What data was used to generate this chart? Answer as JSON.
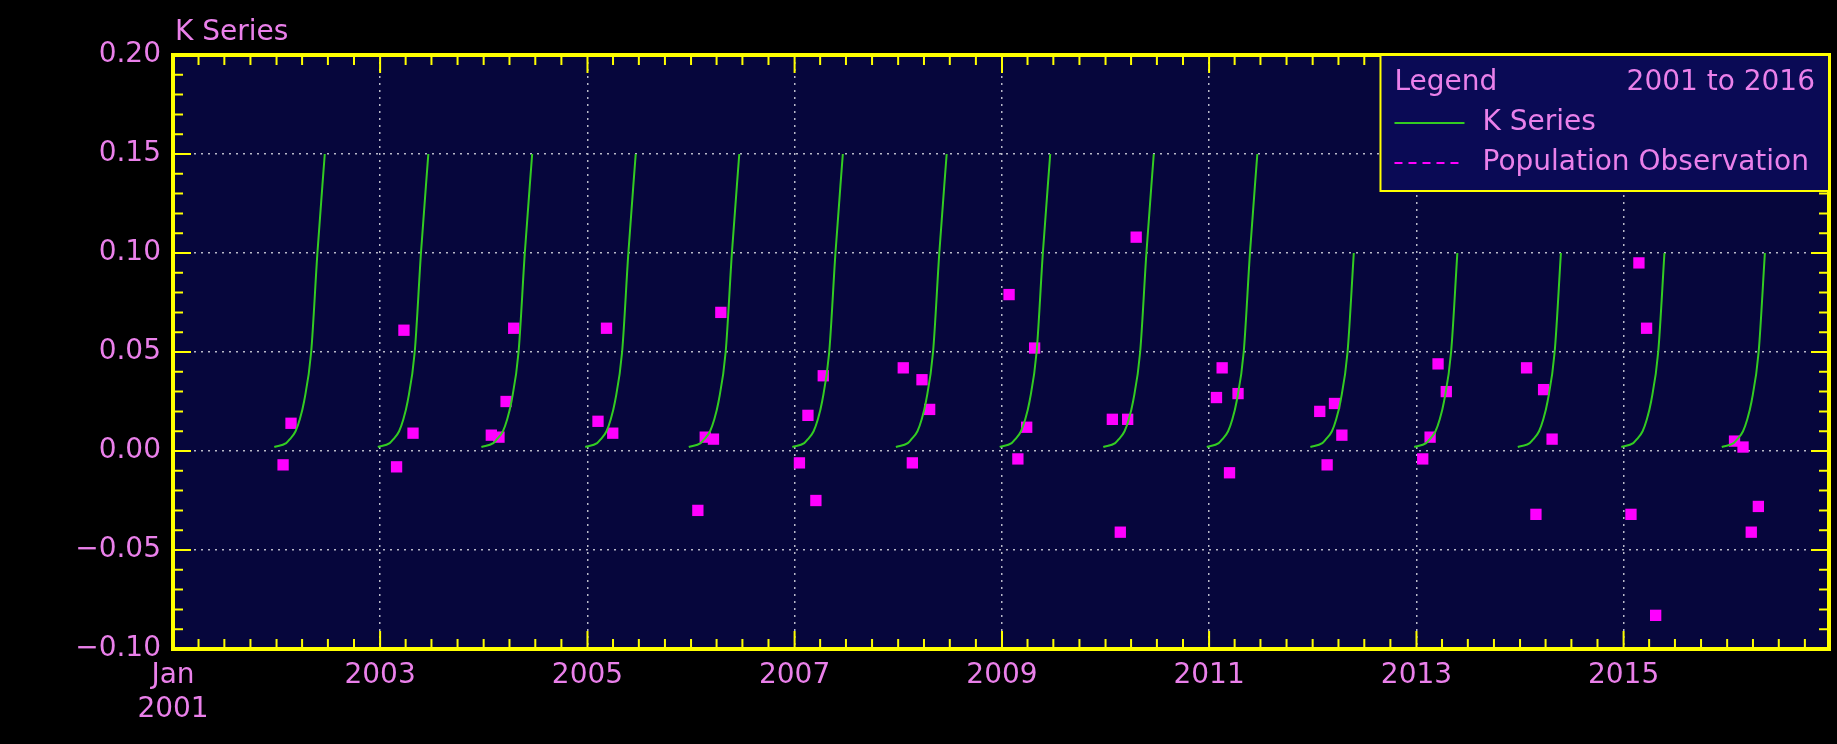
{
  "chart_data": {
    "type": "scatter",
    "ylabel": "K Series",
    "legend_title": "Legend",
    "annotations": [
      "2001 to 2016"
    ],
    "legend": "top right",
    "grid": true,
    "xlim": [
      "2001-01-01",
      "2016-12-25"
    ],
    "xticks": [
      {
        "value": "2001-01-01",
        "label": "Jan 2001"
      },
      {
        "value": "2001-04-01",
        "label": null
      },
      {
        "value": "2001-07-01",
        "label": null
      },
      {
        "value": "2001-10-01",
        "label": null
      },
      {
        "value": "2002-01-01",
        "label": null
      },
      {
        "value": "2002-04-01",
        "label": null
      },
      {
        "value": "2002-07-01",
        "label": null
      },
      {
        "value": "2002-10-01",
        "label": null
      },
      {
        "value": "2003-01-01",
        "label": "2003"
      },
      {
        "value": "2003-04-01",
        "label": null
      },
      {
        "value": "2003-07-01",
        "label": null
      },
      {
        "value": "2003-10-01",
        "label": null
      },
      {
        "value": "2004-01-01",
        "label": null
      },
      {
        "value": "2004-04-01",
        "label": null
      },
      {
        "value": "2004-07-01",
        "label": null
      },
      {
        "value": "2004-10-01",
        "label": null
      },
      {
        "value": "2005-01-01",
        "label": "2005"
      },
      {
        "value": "2005-04-01",
        "label": null
      },
      {
        "value": "2005-07-01",
        "label": null
      },
      {
        "value": "2005-10-01",
        "label": null
      },
      {
        "value": "2006-01-01",
        "label": null
      },
      {
        "value": "2006-04-01",
        "label": null
      },
      {
        "value": "2006-07-01",
        "label": null
      },
      {
        "value": "2006-10-01",
        "label": null
      },
      {
        "value": "2007-01-01",
        "label": "2007"
      },
      {
        "value": "2007-04-01",
        "label": null
      },
      {
        "value": "2007-07-01",
        "label": null
      },
      {
        "value": "2007-10-01",
        "label": null
      },
      {
        "value": "2008-01-01",
        "label": null
      },
      {
        "value": "2008-04-01",
        "label": null
      },
      {
        "value": "2008-07-01",
        "label": null
      },
      {
        "value": "2008-10-01",
        "label": null
      },
      {
        "value": "2009-01-01",
        "label": "2009"
      },
      {
        "value": "2009-04-01",
        "label": null
      },
      {
        "value": "2009-07-01",
        "label": null
      },
      {
        "value": "2009-10-01",
        "label": null
      },
      {
        "value": "2010-01-01",
        "label": null
      },
      {
        "value": "2010-04-01",
        "label": null
      },
      {
        "value": "2010-07-01",
        "label": null
      },
      {
        "value": "2010-10-01",
        "label": null
      },
      {
        "value": "2011-01-01",
        "label": "2011"
      },
      {
        "value": "2011-04-01",
        "label": null
      },
      {
        "value": "2011-07-01",
        "label": null
      },
      {
        "value": "2011-10-01",
        "label": null
      },
      {
        "value": "2012-01-01",
        "label": null
      },
      {
        "value": "2012-04-01",
        "label": null
      },
      {
        "value": "2012-07-01",
        "label": null
      },
      {
        "value": "2012-10-01",
        "label": null
      },
      {
        "value": "2013-01-01",
        "label": "2013"
      },
      {
        "value": "2013-04-01",
        "label": null
      },
      {
        "value": "2013-07-01",
        "label": null
      },
      {
        "value": "2013-10-01",
        "label": null
      },
      {
        "value": "2014-01-01",
        "label": null
      },
      {
        "value": "2014-04-01",
        "label": null
      },
      {
        "value": "2014-07-01",
        "label": null
      },
      {
        "value": "2014-10-01",
        "label": null
      },
      {
        "value": "2015-01-01",
        "label": "2015"
      },
      {
        "value": "2015-04-01",
        "label": null
      },
      {
        "value": "2015-07-01",
        "label": null
      },
      {
        "value": "2015-10-01",
        "label": null
      },
      {
        "value": "2016-01-01",
        "label": null
      },
      {
        "value": "2016-04-01",
        "label": null
      },
      {
        "value": "2016-07-01",
        "label": null
      },
      {
        "value": "2016-10-01",
        "label": null
      }
    ],
    "ylim": [
      -0.1,
      0.2
    ],
    "yticks": [
      {
        "value": -0.1,
        "label": "−0.10"
      },
      {
        "value": -0.09,
        "label": null
      },
      {
        "value": -0.08,
        "label": null
      },
      {
        "value": -0.07,
        "label": null
      },
      {
        "value": -0.06,
        "label": null
      },
      {
        "value": -0.05,
        "label": "−0.05"
      },
      {
        "value": -0.04,
        "label": null
      },
      {
        "value": -0.03,
        "label": null
      },
      {
        "value": -0.02,
        "label": null
      },
      {
        "value": -0.01,
        "label": null
      },
      {
        "value": 0,
        "label": "0.00"
      },
      {
        "value": 0.01,
        "label": null
      },
      {
        "value": 0.02,
        "label": null
      },
      {
        "value": 0.03,
        "label": null
      },
      {
        "value": 0.04,
        "label": null
      },
      {
        "value": 0.05,
        "label": "0.05"
      },
      {
        "value": 0.06,
        "label": null
      },
      {
        "value": 0.07,
        "label": null
      },
      {
        "value": 0.08,
        "label": null
      },
      {
        "value": 0.09,
        "label": null
      },
      {
        "value": 0.1,
        "label": "0.10"
      },
      {
        "value": 0.11,
        "label": null
      },
      {
        "value": 0.12,
        "label": null
      },
      {
        "value": 0.13,
        "label": null
      },
      {
        "value": 0.14,
        "label": null
      },
      {
        "value": 0.15,
        "label": "0.15"
      },
      {
        "value": 0.16,
        "label": null
      },
      {
        "value": 0.17,
        "label": null
      },
      {
        "value": 0.18,
        "label": null
      },
      {
        "value": 0.19,
        "label": null
      },
      {
        "value": 0.2,
        "label": "0.20"
      }
    ],
    "series": [
      {
        "name": "K Series",
        "type": "line",
        "marker": "none",
        "color": "#33cc22",
        "x": [
          "2001-12-24",
          "2002-02-04",
          "2002-02-17",
          "2002-03-09",
          "2002-03-24",
          "2002-04-08",
          "2002-05-03",
          "2002-05-25",
          "2002-06-20",
          "2002-09-01",
          "2002-12-24",
          "2003-02-04",
          "2003-02-17",
          "2003-03-09",
          "2003-03-24",
          "2003-04-08",
          "2003-05-03",
          "2003-05-25",
          "2003-06-20",
          "2003-09-01",
          "2003-12-24",
          "2004-02-04",
          "2004-02-17",
          "2004-03-09",
          "2004-03-24",
          "2004-04-08",
          "2004-05-03",
          "2004-05-25",
          "2004-06-20",
          "2004-09-01",
          "2004-12-24",
          "2005-02-04",
          "2005-02-17",
          "2005-03-09",
          "2005-03-24",
          "2005-04-08",
          "2005-05-03",
          "2005-05-25",
          "2005-06-20",
          "2005-09-01",
          "2005-12-24",
          "2006-02-04",
          "2006-02-17",
          "2006-03-09",
          "2006-03-24",
          "2006-04-08",
          "2006-05-03",
          "2006-05-25",
          "2006-06-20",
          "2006-09-01",
          "2006-12-24",
          "2007-02-04",
          "2007-02-17",
          "2007-03-09",
          "2007-03-24",
          "2007-04-08",
          "2007-05-03",
          "2007-05-25",
          "2007-06-20",
          "2007-09-01",
          "2007-12-24",
          "2008-02-04",
          "2008-02-17",
          "2008-03-09",
          "2008-03-24",
          "2008-04-08",
          "2008-05-03",
          "2008-05-25",
          "2008-06-20",
          "2008-09-01",
          "2008-12-24",
          "2009-02-04",
          "2009-02-17",
          "2009-03-09",
          "2009-03-24",
          "2009-04-08",
          "2009-05-03",
          "2009-05-25",
          "2009-06-20",
          "2009-09-01",
          "2009-12-24",
          "2010-02-04",
          "2010-02-17",
          "2010-03-09",
          "2010-03-24",
          "2010-04-08",
          "2010-05-03",
          "2010-05-25",
          "2010-06-20",
          "2010-09-01",
          "2010-12-24",
          "2011-02-04",
          "2011-02-17",
          "2011-03-09",
          "2011-03-24",
          "2011-04-08",
          "2011-05-03",
          "2011-05-25",
          "2011-06-20",
          "2011-09-01",
          "2011-12-24",
          "2012-02-04",
          "2012-02-17",
          "2012-03-09",
          "2012-03-24",
          "2012-04-08",
          "2012-05-03",
          "2012-05-25",
          "2012-06-20",
          "2012-09-01",
          "2012-12-24",
          "2013-02-04",
          "2013-02-17",
          "2013-03-09",
          "2013-03-24",
          "2013-04-08",
          "2013-05-03",
          "2013-05-25",
          "2013-06-20",
          "2013-09-01",
          "2013-12-24",
          "2014-02-04",
          "2014-02-17",
          "2014-03-09",
          "2014-03-24",
          "2014-04-08",
          "2014-05-03",
          "2014-05-25",
          "2014-06-20",
          "2014-09-01",
          "2014-12-24",
          "2015-02-04",
          "2015-02-17",
          "2015-03-09",
          "2015-03-24",
          "2015-04-08",
          "2015-05-03",
          "2015-05-25",
          "2015-06-20",
          "2015-09-01",
          "2015-12-13",
          "2016-01-24",
          "2016-02-06",
          "2016-02-26",
          "2016-03-12",
          "2016-03-27",
          "2016-04-21",
          "2016-05-13"
        ],
        "values": [
          0.002,
          0.004,
          0.006,
          0.01,
          0.016,
          0.025,
          0.05,
          0.1,
          0.15,
          null,
          0.002,
          0.004,
          0.006,
          0.01,
          0.016,
          0.025,
          0.05,
          0.1,
          0.15,
          null,
          0.002,
          0.004,
          0.006,
          0.01,
          0.016,
          0.025,
          0.05,
          0.1,
          0.15,
          null,
          0.002,
          0.004,
          0.006,
          0.01,
          0.016,
          0.025,
          0.05,
          0.1,
          0.15,
          null,
          0.002,
          0.004,
          0.006,
          0.01,
          0.016,
          0.025,
          0.05,
          0.1,
          0.15,
          null,
          0.002,
          0.004,
          0.006,
          0.01,
          0.016,
          0.025,
          0.05,
          0.1,
          0.15,
          null,
          0.002,
          0.004,
          0.006,
          0.01,
          0.016,
          0.025,
          0.05,
          0.1,
          0.15,
          null,
          0.002,
          0.004,
          0.006,
          0.01,
          0.016,
          0.025,
          0.05,
          0.1,
          0.15,
          null,
          0.002,
          0.004,
          0.006,
          0.01,
          0.016,
          0.025,
          0.05,
          0.1,
          0.15,
          null,
          0.002,
          0.004,
          0.006,
          0.01,
          0.016,
          0.025,
          0.05,
          0.1,
          0.15,
          null,
          0.002,
          0.004,
          0.006,
          0.01,
          0.016,
          0.025,
          0.05,
          0.1,
          null,
          null,
          0.002,
          0.004,
          0.006,
          0.01,
          0.016,
          0.025,
          0.05,
          0.1,
          null,
          null,
          0.002,
          0.004,
          0.006,
          0.01,
          0.016,
          0.025,
          0.05,
          0.1,
          null,
          null,
          0.002,
          0.004,
          0.006,
          0.01,
          0.016,
          0.025,
          0.05,
          0.1,
          null,
          null,
          0.002,
          0.004,
          0.006,
          0.01,
          0.016,
          0.025,
          0.05,
          0.1
        ]
      },
      {
        "name": "Population Observation",
        "marker": "square",
        "color": "#ff00ff",
        "x": [
          "2002-01-24",
          "2002-02-21",
          "2003-02-28",
          "2003-03-26",
          "2003-04-27",
          "2004-01-28",
          "2004-02-24",
          "2004-03-20",
          "2004-04-16",
          "2005-02-07",
          "2005-03-09",
          "2005-03-31",
          "2006-01-25",
          "2006-02-20",
          "2006-03-21",
          "2006-04-16",
          "2007-01-18",
          "2007-02-17",
          "2007-03-17",
          "2007-04-12",
          "2008-01-19",
          "2008-02-20",
          "2008-03-25",
          "2008-04-21",
          "2009-01-26",
          "2009-02-26",
          "2009-03-29",
          "2009-04-26",
          "2010-01-25",
          "2010-02-22",
          "2010-03-20",
          "2010-04-19",
          "2011-01-27",
          "2011-02-16",
          "2011-03-14",
          "2011-04-13",
          "2012-01-26",
          "2012-02-21",
          "2012-03-18",
          "2012-04-13",
          "2013-01-23",
          "2013-02-18",
          "2013-03-18",
          "2013-04-16",
          "2014-01-24",
          "2014-02-26",
          "2014-03-25",
          "2014-04-24",
          "2015-01-27",
          "2015-02-24",
          "2015-03-23",
          "2015-04-24",
          "2016-01-27",
          "2016-02-26",
          "2016-03-26",
          "2016-04-20"
        ],
        "values": [
          -0.007,
          0.014,
          -0.008,
          0.061,
          0.009,
          0.008,
          0.007,
          0.025,
          0.062,
          0.015,
          0.062,
          0.009,
          -0.03,
          0.007,
          0.006,
          0.07,
          -0.006,
          0.018,
          -0.025,
          0.038,
          0.042,
          -0.006,
          0.036,
          0.021,
          0.079,
          -0.004,
          0.012,
          0.052,
          0.016,
          -0.041,
          0.016,
          0.108,
          0.027,
          0.042,
          -0.011,
          0.029,
          0.02,
          -0.007,
          0.024,
          0.008,
          -0.004,
          0.007,
          0.044,
          0.03,
          0.042,
          -0.032,
          0.031,
          0.006,
          -0.032,
          0.095,
          0.062,
          -0.083,
          0.005,
          0.002,
          -0.041,
          -0.028
        ]
      }
    ]
  }
}
